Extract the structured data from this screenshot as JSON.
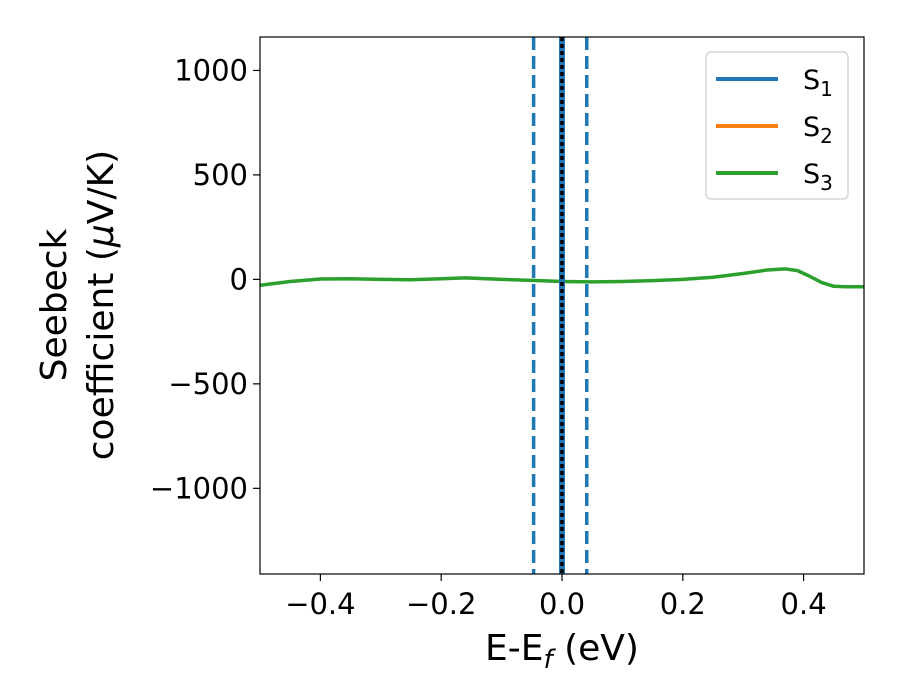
{
  "chart_data": {
    "type": "line",
    "xlabel": {
      "base": "E-E",
      "sub": "f",
      "unit": " (eV)"
    },
    "ylabel": {
      "line1": "Seebeck",
      "line2_prefix": "coefficient  (",
      "mu": "μ",
      "line2_suffix": "V/K)"
    },
    "xlim": [
      -0.5,
      0.5
    ],
    "ylim": [
      -1410,
      1160
    ],
    "xticks": [
      -0.4,
      -0.2,
      0.0,
      0.2,
      0.4
    ],
    "xtick_labels": [
      "−0.4",
      "−0.2",
      "0.0",
      "0.2",
      "0.4"
    ],
    "yticks": [
      1000,
      500,
      0,
      -500,
      -1000
    ],
    "ytick_labels": [
      "1000",
      "500",
      "0",
      "−500",
      "−1000"
    ],
    "legend_position": "top-right",
    "series": [
      {
        "name": "S",
        "sub": "1",
        "color": "#1f77b4",
        "x": [
          0
        ],
        "y": [
          0
        ]
      },
      {
        "name": "S",
        "sub": "2",
        "color": "#ff7f0e",
        "x": [
          0
        ],
        "y": [
          0
        ]
      },
      {
        "name": "S",
        "sub": "3",
        "color": "#2ca02c",
        "x": [
          -0.5,
          -0.45,
          -0.4,
          -0.35,
          -0.3,
          -0.25,
          -0.2,
          -0.16,
          -0.1,
          -0.05,
          0.0,
          0.05,
          0.1,
          0.15,
          0.2,
          0.25,
          0.3,
          0.34,
          0.37,
          0.39,
          0.41,
          0.43,
          0.45,
          0.47,
          0.5
        ],
        "y": [
          -28,
          -10,
          2,
          3,
          0,
          -2,
          3,
          7,
          0,
          -5,
          -10,
          -12,
          -10,
          -6,
          0,
          10,
          28,
          45,
          50,
          42,
          15,
          -15,
          -33,
          -35,
          -35
        ]
      }
    ],
    "reference_lines": [
      {
        "x": 0.0,
        "style": "solid",
        "color": "#1f77b4"
      },
      {
        "x": 0.0,
        "style": "dotted",
        "color": "#000000"
      },
      {
        "x": -0.047,
        "style": "dashed",
        "color": "#1f77b4"
      },
      {
        "x": 0.041,
        "style": "dashed",
        "color": "#1f77b4"
      }
    ]
  }
}
